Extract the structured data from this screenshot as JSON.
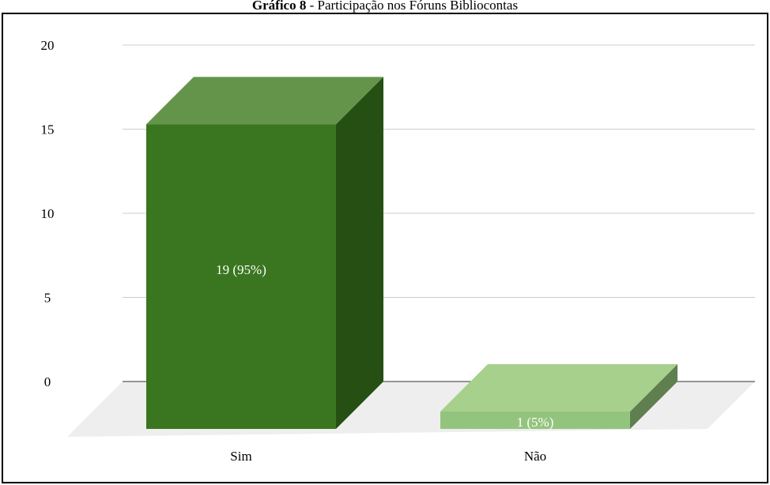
{
  "chart_data": {
    "type": "bar",
    "title_bold": "Gráfico 8",
    "title_rest": " - Participação nos Fóruns Bibliocontas",
    "categories": [
      "Sim",
      "Não"
    ],
    "values": [
      19,
      1
    ],
    "data_labels": [
      "19 (95%)",
      "1 (5%)"
    ],
    "ylim": [
      0,
      20
    ],
    "yticks": [
      0,
      5,
      10,
      15,
      20
    ],
    "grid": true,
    "colors": {
      "front": [
        "#3a761f",
        "#93c47d"
      ],
      "top": [
        "#63944a",
        "#a8d08d"
      ],
      "side": [
        "#264f14",
        "#5f7f4f"
      ],
      "floor": "#eeeeee",
      "grid": "#cccccc"
    }
  }
}
